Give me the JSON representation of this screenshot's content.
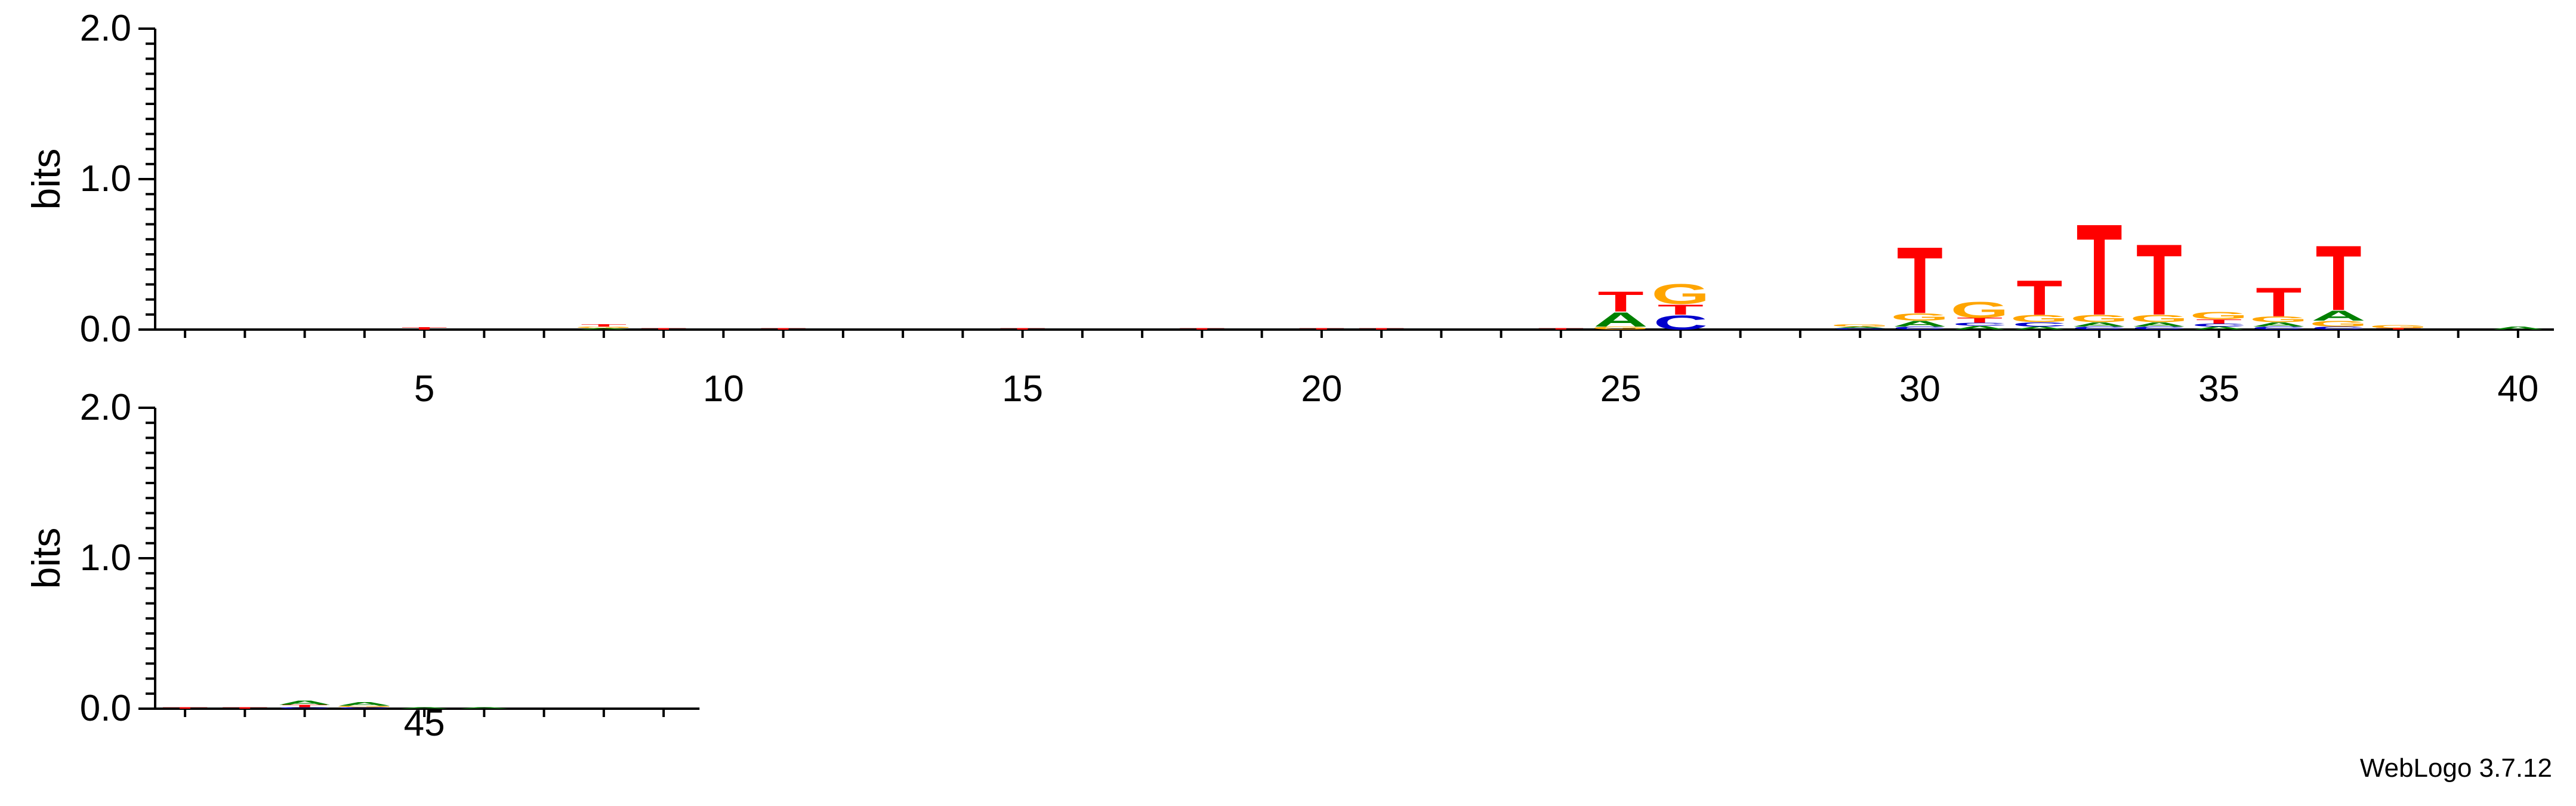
{
  "chart_data": {
    "type": "sequence-logo",
    "ylabel": "bits",
    "ylim": [
      0,
      2.0
    ],
    "ytick_labels": [
      "0.0",
      "1.0",
      "2.0"
    ],
    "colors": {
      "A": "#008000",
      "C": "#0000cc",
      "G": "#ffa500",
      "T": "#ff0000"
    },
    "rows": [
      {
        "start": 1,
        "end": 40,
        "tick_labels": [
          5,
          10,
          15,
          20,
          25,
          30,
          35,
          40
        ]
      },
      {
        "start": 41,
        "end": 49,
        "tick_labels": [
          45
        ]
      }
    ],
    "positions": [
      {
        "pos": 5,
        "stack": [
          [
            "T",
            0.015
          ]
        ]
      },
      {
        "pos": 8,
        "stack": [
          [
            "A",
            0.01
          ],
          [
            "G",
            0.01
          ],
          [
            "T",
            0.015
          ]
        ]
      },
      {
        "pos": 9,
        "stack": [
          [
            "T",
            0.01
          ]
        ]
      },
      {
        "pos": 11,
        "stack": [
          [
            "T",
            0.01
          ]
        ]
      },
      {
        "pos": 15,
        "stack": [
          [
            "T",
            0.01
          ]
        ]
      },
      {
        "pos": 18,
        "stack": [
          [
            "T",
            0.01
          ]
        ]
      },
      {
        "pos": 20,
        "stack": [
          [
            "T",
            0.01
          ]
        ]
      },
      {
        "pos": 21,
        "stack": [
          [
            "T",
            0.01
          ]
        ]
      },
      {
        "pos": 24,
        "stack": [
          [
            "T",
            0.01
          ]
        ]
      },
      {
        "pos": 25,
        "stack": [
          [
            "G",
            0.02
          ],
          [
            "A",
            0.1
          ],
          [
            "T",
            0.14
          ]
        ]
      },
      {
        "pos": 26,
        "stack": [
          [
            "C",
            0.1
          ],
          [
            "T",
            0.07
          ],
          [
            "G",
            0.14
          ]
        ]
      },
      {
        "pos": 29,
        "stack": [
          [
            "C",
            0.01
          ],
          [
            "A",
            0.01
          ],
          [
            "G",
            0.015
          ]
        ]
      },
      {
        "pos": 30,
        "stack": [
          [
            "C",
            0.02
          ],
          [
            "A",
            0.04
          ],
          [
            "G",
            0.05
          ],
          [
            "T",
            0.46
          ]
        ]
      },
      {
        "pos": 31,
        "stack": [
          [
            "A",
            0.025
          ],
          [
            "C",
            0.02
          ],
          [
            "T",
            0.035
          ],
          [
            "G",
            0.11
          ]
        ]
      },
      {
        "pos": 32,
        "stack": [
          [
            "A",
            0.02
          ],
          [
            "C",
            0.03
          ],
          [
            "G",
            0.05
          ],
          [
            "T",
            0.24
          ]
        ]
      },
      {
        "pos": 33,
        "stack": [
          [
            "C",
            0.02
          ],
          [
            "A",
            0.03
          ],
          [
            "G",
            0.05
          ],
          [
            "T",
            0.63
          ]
        ]
      },
      {
        "pos": 34,
        "stack": [
          [
            "C",
            0.02
          ],
          [
            "A",
            0.03
          ],
          [
            "G",
            0.05
          ],
          [
            "T",
            0.49
          ]
        ]
      },
      {
        "pos": 35,
        "stack": [
          [
            "A",
            0.02
          ],
          [
            "C",
            0.02
          ],
          [
            "T",
            0.03
          ],
          [
            "G",
            0.05
          ]
        ]
      },
      {
        "pos": 36,
        "stack": [
          [
            "C",
            0.02
          ],
          [
            "A",
            0.03
          ],
          [
            "G",
            0.04
          ],
          [
            "T",
            0.2
          ]
        ]
      },
      {
        "pos": 37,
        "stack": [
          [
            "C",
            0.02
          ],
          [
            "G",
            0.04
          ],
          [
            "A",
            0.07
          ],
          [
            "T",
            0.45
          ]
        ]
      },
      {
        "pos": 38,
        "stack": [
          [
            "T",
            0.01
          ],
          [
            "G",
            0.02
          ]
        ]
      },
      {
        "pos": 40,
        "stack": [
          [
            "A",
            0.02
          ]
        ]
      },
      {
        "pos": 41,
        "stack": [
          [
            "T",
            0.01
          ]
        ]
      },
      {
        "pos": 42,
        "stack": [
          [
            "T",
            0.01
          ]
        ]
      },
      {
        "pos": 43,
        "stack": [
          [
            "C",
            0.01
          ],
          [
            "T",
            0.015
          ],
          [
            "A",
            0.03
          ]
        ]
      },
      {
        "pos": 44,
        "stack": [
          [
            "C",
            0.01
          ],
          [
            "G",
            0.01
          ],
          [
            "A",
            0.025
          ]
        ]
      },
      {
        "pos": 45,
        "stack": [
          [
            "A",
            0.01
          ]
        ]
      },
      {
        "pos": 46,
        "stack": [
          [
            "A",
            0.01
          ]
        ]
      }
    ]
  },
  "footer": {
    "credit": "WebLogo 3.7.12"
  }
}
